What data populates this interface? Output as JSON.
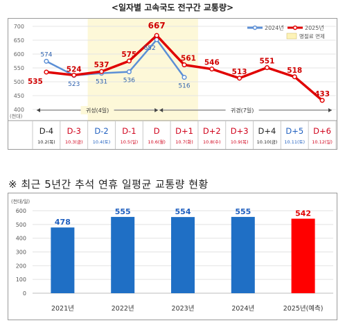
{
  "chart_data": [
    {
      "type": "line",
      "title": "<일자별 고속국도 전구간 교통량>",
      "y_unit": "(천대)",
      "yticks": [
        "700",
        "650",
        "600",
        "550",
        "500",
        "450",
        "400"
      ],
      "ylim": [
        400,
        700
      ],
      "legend": [
        "2024년",
        "2025년"
      ],
      "highlight_label": "명절료 면제",
      "periods": [
        "귀성(4일)",
        "귀경(7일)"
      ],
      "days": [
        {
          "d": "D-4",
          "date": "10.2(목)",
          "color": "#222222"
        },
        {
          "d": "D-3",
          "date": "10.3(금)",
          "color": "#d0021b"
        },
        {
          "d": "D-2",
          "date": "10.4(토)",
          "color": "#1f5fbf"
        },
        {
          "d": "D-1",
          "date": "10.5(일)",
          "color": "#d0021b"
        },
        {
          "d": "D",
          "date": "10.6(월)",
          "color": "#d0021b"
        },
        {
          "d": "D+1",
          "date": "10.7(화)",
          "color": "#d0021b"
        },
        {
          "d": "D+2",
          "date": "10.8(수)",
          "color": "#d0021b"
        },
        {
          "d": "D+3",
          "date": "10.9(목)",
          "color": "#d0021b"
        },
        {
          "d": "D+4",
          "date": "10.10(금)",
          "color": "#222222"
        },
        {
          "d": "D+5",
          "date": "10.11(토)",
          "color": "#1f5fbf"
        },
        {
          "d": "D+6",
          "date": "10.12(일)",
          "color": "#d0021b"
        }
      ],
      "series": [
        {
          "name": "2024년",
          "color": "#5b8fd6",
          "values": [
            574,
            523,
            531,
            536,
            652,
            516,
            null,
            null,
            null,
            null,
            null
          ]
        },
        {
          "name": "2025년",
          "color": "#e00000",
          "values": [
            535,
            524,
            537,
            575,
            667,
            561,
            546,
            513,
            551,
            518,
            433
          ]
        }
      ]
    },
    {
      "type": "bar",
      "title": "※ 최근 5년간 추석 연휴 일평균 교통량 현황",
      "y_unit": "(천대/일)",
      "yticks": [
        "0",
        "100",
        "200",
        "300",
        "400",
        "500",
        "600"
      ],
      "ylim": [
        0,
        600
      ],
      "categories": [
        "2021년",
        "2022년",
        "2023년",
        "2024년",
        "2025년(예측)"
      ],
      "values": [
        478,
        555,
        554,
        555,
        542
      ],
      "colors": [
        "#1f6fc5",
        "#1f6fc5",
        "#1f6fc5",
        "#1f6fc5",
        "#ff0000"
      ],
      "label_colors": [
        "#1f5fbf",
        "#1f5fbf",
        "#1f5fbf",
        "#1f5fbf",
        "#e00000"
      ]
    }
  ]
}
